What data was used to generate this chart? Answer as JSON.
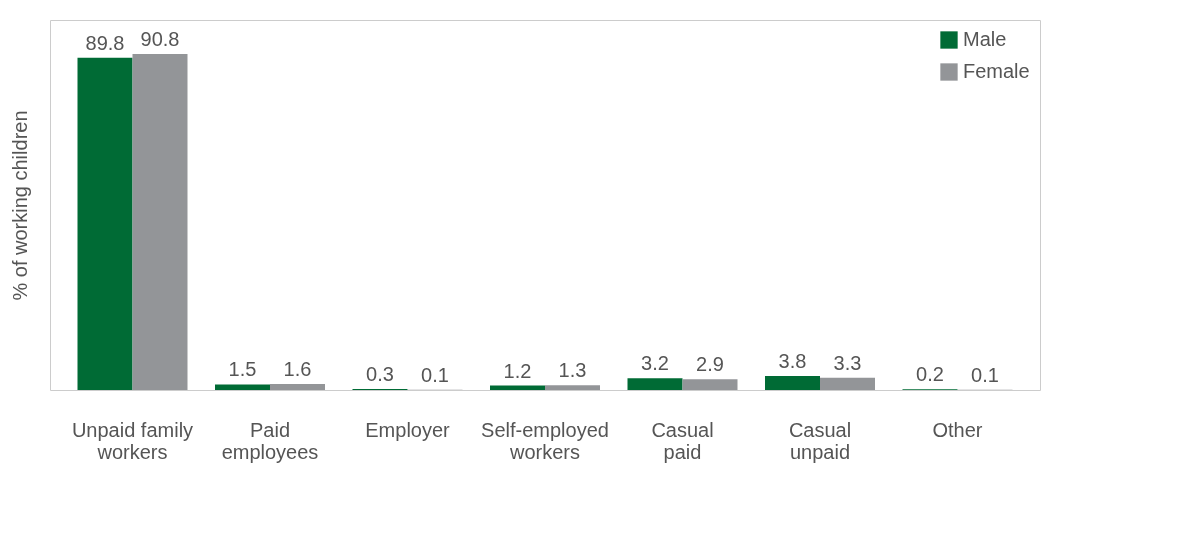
{
  "chart_data": {
    "type": "bar",
    "ylabel": "% of working children",
    "categories": [
      "Unpaid family\nworkers",
      "Paid\nemployees",
      "Employer",
      "Self-employed\nworkers",
      "Casual\npaid",
      "Casual\nunpaid",
      "Other"
    ],
    "series": [
      {
        "name": "Male",
        "color": "#006b35",
        "values": [
          89.8,
          1.5,
          0.3,
          1.2,
          3.2,
          3.8,
          0.2
        ]
      },
      {
        "name": "Female",
        "color": "#939598",
        "values": [
          90.8,
          1.6,
          0.1,
          1.3,
          2.9,
          3.3,
          0.1
        ]
      }
    ],
    "data_labels": true,
    "legend": "top right",
    "grid": false
  }
}
